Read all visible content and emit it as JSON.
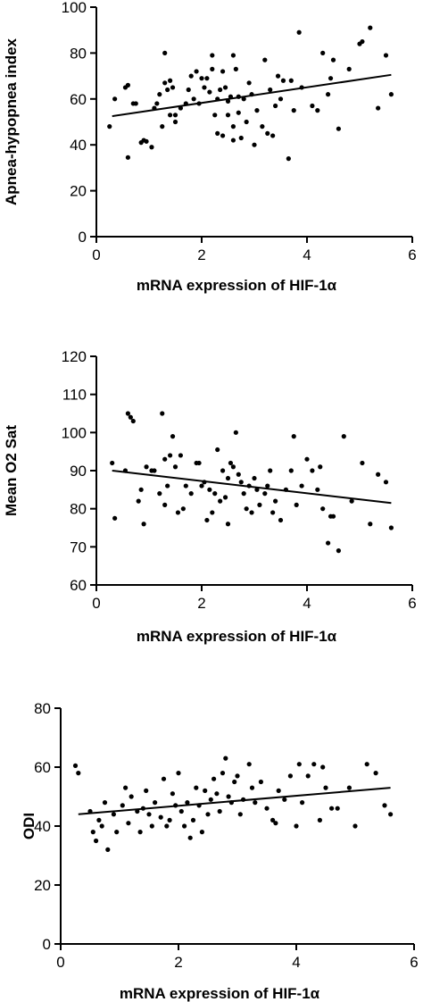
{
  "chart_data": [
    {
      "type": "scatter",
      "xlabel": "mRNA expression of HIF-1α",
      "ylabel": "Apnea-hypopnea index",
      "xlim": [
        0,
        6
      ],
      "ylim": [
        0,
        100
      ],
      "xticks": [
        0,
        2,
        4,
        6
      ],
      "yticks": [
        0,
        20,
        40,
        60,
        80,
        100
      ],
      "fit_line": {
        "x": [
          0.3,
          5.6
        ],
        "y": [
          52.5,
          70.5
        ]
      },
      "points": [
        [
          0.25,
          48
        ],
        [
          0.35,
          60
        ],
        [
          0.55,
          65
        ],
        [
          0.6,
          34.5
        ],
        [
          0.6,
          66
        ],
        [
          0.7,
          58
        ],
        [
          0.75,
          58
        ],
        [
          0.85,
          41
        ],
        [
          0.9,
          42
        ],
        [
          0.95,
          41.5
        ],
        [
          1.05,
          39
        ],
        [
          1.1,
          56
        ],
        [
          1.15,
          58
        ],
        [
          1.2,
          62
        ],
        [
          1.25,
          48
        ],
        [
          1.3,
          80
        ],
        [
          1.3,
          67
        ],
        [
          1.35,
          64
        ],
        [
          1.4,
          68
        ],
        [
          1.4,
          53
        ],
        [
          1.45,
          65
        ],
        [
          1.5,
          53
        ],
        [
          1.5,
          50
        ],
        [
          1.6,
          56
        ],
        [
          1.7,
          58
        ],
        [
          1.75,
          64
        ],
        [
          1.8,
          70
        ],
        [
          1.85,
          60
        ],
        [
          1.9,
          72
        ],
        [
          1.95,
          58
        ],
        [
          2.0,
          69
        ],
        [
          2.05,
          65
        ],
        [
          2.1,
          69
        ],
        [
          2.15,
          63
        ],
        [
          2.2,
          79
        ],
        [
          2.2,
          73
        ],
        [
          2.25,
          53
        ],
        [
          2.3,
          60
        ],
        [
          2.3,
          45
        ],
        [
          2.35,
          64
        ],
        [
          2.4,
          44
        ],
        [
          2.4,
          72
        ],
        [
          2.45,
          65
        ],
        [
          2.5,
          53
        ],
        [
          2.5,
          59
        ],
        [
          2.55,
          61
        ],
        [
          2.6,
          79
        ],
        [
          2.6,
          42
        ],
        [
          2.6,
          48
        ],
        [
          2.65,
          73
        ],
        [
          2.7,
          61
        ],
        [
          2.7,
          54
        ],
        [
          2.75,
          43
        ],
        [
          2.8,
          60
        ],
        [
          2.85,
          50
        ],
        [
          2.9,
          67
        ],
        [
          2.95,
          62
        ],
        [
          3.0,
          40
        ],
        [
          3.05,
          55
        ],
        [
          3.15,
          48
        ],
        [
          3.2,
          77
        ],
        [
          3.25,
          45
        ],
        [
          3.3,
          64
        ],
        [
          3.35,
          44
        ],
        [
          3.4,
          57
        ],
        [
          3.45,
          70
        ],
        [
          3.5,
          60
        ],
        [
          3.55,
          68
        ],
        [
          3.65,
          34
        ],
        [
          3.7,
          68
        ],
        [
          3.75,
          55
        ],
        [
          3.85,
          89
        ],
        [
          3.9,
          65
        ],
        [
          4.1,
          57
        ],
        [
          4.2,
          55
        ],
        [
          4.3,
          80
        ],
        [
          4.4,
          62
        ],
        [
          4.45,
          69
        ],
        [
          4.5,
          77
        ],
        [
          4.6,
          47
        ],
        [
          4.8,
          73
        ],
        [
          5.0,
          84
        ],
        [
          5.05,
          85
        ],
        [
          5.2,
          91
        ],
        [
          5.35,
          56
        ],
        [
          5.5,
          79
        ],
        [
          5.6,
          62
        ]
      ]
    },
    {
      "type": "scatter",
      "xlabel": "mRNA expression of HIF-1α",
      "ylabel": "Mean O2 Sat",
      "xlim": [
        0,
        6
      ],
      "ylim": [
        60,
        120
      ],
      "xticks": [
        0,
        2,
        4,
        6
      ],
      "yticks": [
        60,
        70,
        80,
        90,
        100,
        110,
        120
      ],
      "fit_line": {
        "x": [
          0.3,
          5.6
        ],
        "y": [
          90,
          81.5
        ]
      },
      "points": [
        [
          0.3,
          92
        ],
        [
          0.35,
          77.5
        ],
        [
          0.55,
          90
        ],
        [
          0.6,
          105
        ],
        [
          0.65,
          104
        ],
        [
          0.7,
          103
        ],
        [
          0.8,
          82
        ],
        [
          0.85,
          85
        ],
        [
          0.9,
          76
        ],
        [
          0.95,
          91
        ],
        [
          1.05,
          90
        ],
        [
          1.1,
          90
        ],
        [
          1.2,
          84
        ],
        [
          1.25,
          105
        ],
        [
          1.3,
          81
        ],
        [
          1.3,
          93
        ],
        [
          1.35,
          86
        ],
        [
          1.4,
          94
        ],
        [
          1.45,
          99
        ],
        [
          1.5,
          91
        ],
        [
          1.55,
          79
        ],
        [
          1.6,
          94
        ],
        [
          1.65,
          80
        ],
        [
          1.7,
          86
        ],
        [
          1.8,
          84
        ],
        [
          1.9,
          92
        ],
        [
          1.95,
          92
        ],
        [
          2.0,
          86
        ],
        [
          2.05,
          87
        ],
        [
          2.1,
          77
        ],
        [
          2.15,
          85
        ],
        [
          2.2,
          79
        ],
        [
          2.25,
          84
        ],
        [
          2.3,
          95.5
        ],
        [
          2.35,
          82
        ],
        [
          2.4,
          90
        ],
        [
          2.45,
          83
        ],
        [
          2.5,
          88
        ],
        [
          2.5,
          76
        ],
        [
          2.55,
          92
        ],
        [
          2.6,
          91
        ],
        [
          2.65,
          100
        ],
        [
          2.7,
          89
        ],
        [
          2.75,
          87
        ],
        [
          2.8,
          84
        ],
        [
          2.85,
          80
        ],
        [
          2.9,
          86
        ],
        [
          2.95,
          79
        ],
        [
          3.0,
          88
        ],
        [
          3.05,
          85
        ],
        [
          3.1,
          81
        ],
        [
          3.2,
          84
        ],
        [
          3.25,
          86
        ],
        [
          3.3,
          90
        ],
        [
          3.35,
          79
        ],
        [
          3.4,
          82
        ],
        [
          3.5,
          77
        ],
        [
          3.6,
          85
        ],
        [
          3.7,
          90
        ],
        [
          3.75,
          99
        ],
        [
          3.8,
          81
        ],
        [
          3.9,
          86
        ],
        [
          4.0,
          93
        ],
        [
          4.1,
          90
        ],
        [
          4.2,
          85
        ],
        [
          4.25,
          91
        ],
        [
          4.3,
          80
        ],
        [
          4.4,
          71
        ],
        [
          4.45,
          78
        ],
        [
          4.5,
          78
        ],
        [
          4.6,
          69
        ],
        [
          4.7,
          99
        ],
        [
          4.85,
          82
        ],
        [
          5.05,
          92
        ],
        [
          5.2,
          76
        ],
        [
          5.35,
          89
        ],
        [
          5.5,
          87
        ],
        [
          5.6,
          75
        ]
      ]
    },
    {
      "type": "scatter",
      "xlabel": "mRNA expression of HIF-1α",
      "ylabel": "ODI",
      "xlim": [
        0,
        6
      ],
      "ylim": [
        0,
        80
      ],
      "xticks": [
        0,
        2,
        4,
        6
      ],
      "yticks": [
        0,
        20,
        40,
        60,
        80
      ],
      "fit_line": {
        "x": [
          0.3,
          5.6
        ],
        "y": [
          44,
          53
        ]
      },
      "points": [
        [
          0.25,
          60.5
        ],
        [
          0.3,
          58
        ],
        [
          0.5,
          45
        ],
        [
          0.55,
          38
        ],
        [
          0.6,
          35
        ],
        [
          0.65,
          42
        ],
        [
          0.7,
          40
        ],
        [
          0.75,
          48
        ],
        [
          0.8,
          32
        ],
        [
          0.9,
          44
        ],
        [
          0.95,
          38
        ],
        [
          1.05,
          47
        ],
        [
          1.1,
          53
        ],
        [
          1.15,
          41
        ],
        [
          1.2,
          50
        ],
        [
          1.3,
          45
        ],
        [
          1.35,
          38
        ],
        [
          1.4,
          46
        ],
        [
          1.45,
          52
        ],
        [
          1.5,
          44
        ],
        [
          1.55,
          40
        ],
        [
          1.6,
          48
        ],
        [
          1.7,
          43
        ],
        [
          1.75,
          56
        ],
        [
          1.8,
          40
        ],
        [
          1.85,
          42
        ],
        [
          1.9,
          51
        ],
        [
          1.95,
          47
        ],
        [
          2.0,
          58
        ],
        [
          2.05,
          45
        ],
        [
          2.1,
          40
        ],
        [
          2.15,
          48
        ],
        [
          2.2,
          36
        ],
        [
          2.25,
          42
        ],
        [
          2.3,
          53
        ],
        [
          2.35,
          47
        ],
        [
          2.4,
          38
        ],
        [
          2.45,
          52
        ],
        [
          2.5,
          44
        ],
        [
          2.55,
          49
        ],
        [
          2.6,
          56
        ],
        [
          2.65,
          51
        ],
        [
          2.7,
          45
        ],
        [
          2.75,
          58
        ],
        [
          2.8,
          63
        ],
        [
          2.85,
          50
        ],
        [
          2.9,
          48
        ],
        [
          2.95,
          55
        ],
        [
          3.0,
          57
        ],
        [
          3.05,
          44
        ],
        [
          3.1,
          49
        ],
        [
          3.2,
          61
        ],
        [
          3.25,
          53
        ],
        [
          3.3,
          48
        ],
        [
          3.4,
          55
        ],
        [
          3.5,
          46
        ],
        [
          3.6,
          42
        ],
        [
          3.65,
          41
        ],
        [
          3.7,
          52
        ],
        [
          3.8,
          49
        ],
        [
          3.9,
          57
        ],
        [
          4.0,
          40
        ],
        [
          4.05,
          61
        ],
        [
          4.1,
          48
        ],
        [
          4.2,
          57
        ],
        [
          4.3,
          61
        ],
        [
          4.4,
          42
        ],
        [
          4.45,
          60
        ],
        [
          4.5,
          53
        ],
        [
          4.6,
          46
        ],
        [
          4.7,
          46
        ],
        [
          4.9,
          53
        ],
        [
          5.0,
          40
        ],
        [
          5.2,
          61
        ],
        [
          5.35,
          58
        ],
        [
          5.5,
          47
        ],
        [
          5.6,
          44
        ]
      ]
    }
  ]
}
